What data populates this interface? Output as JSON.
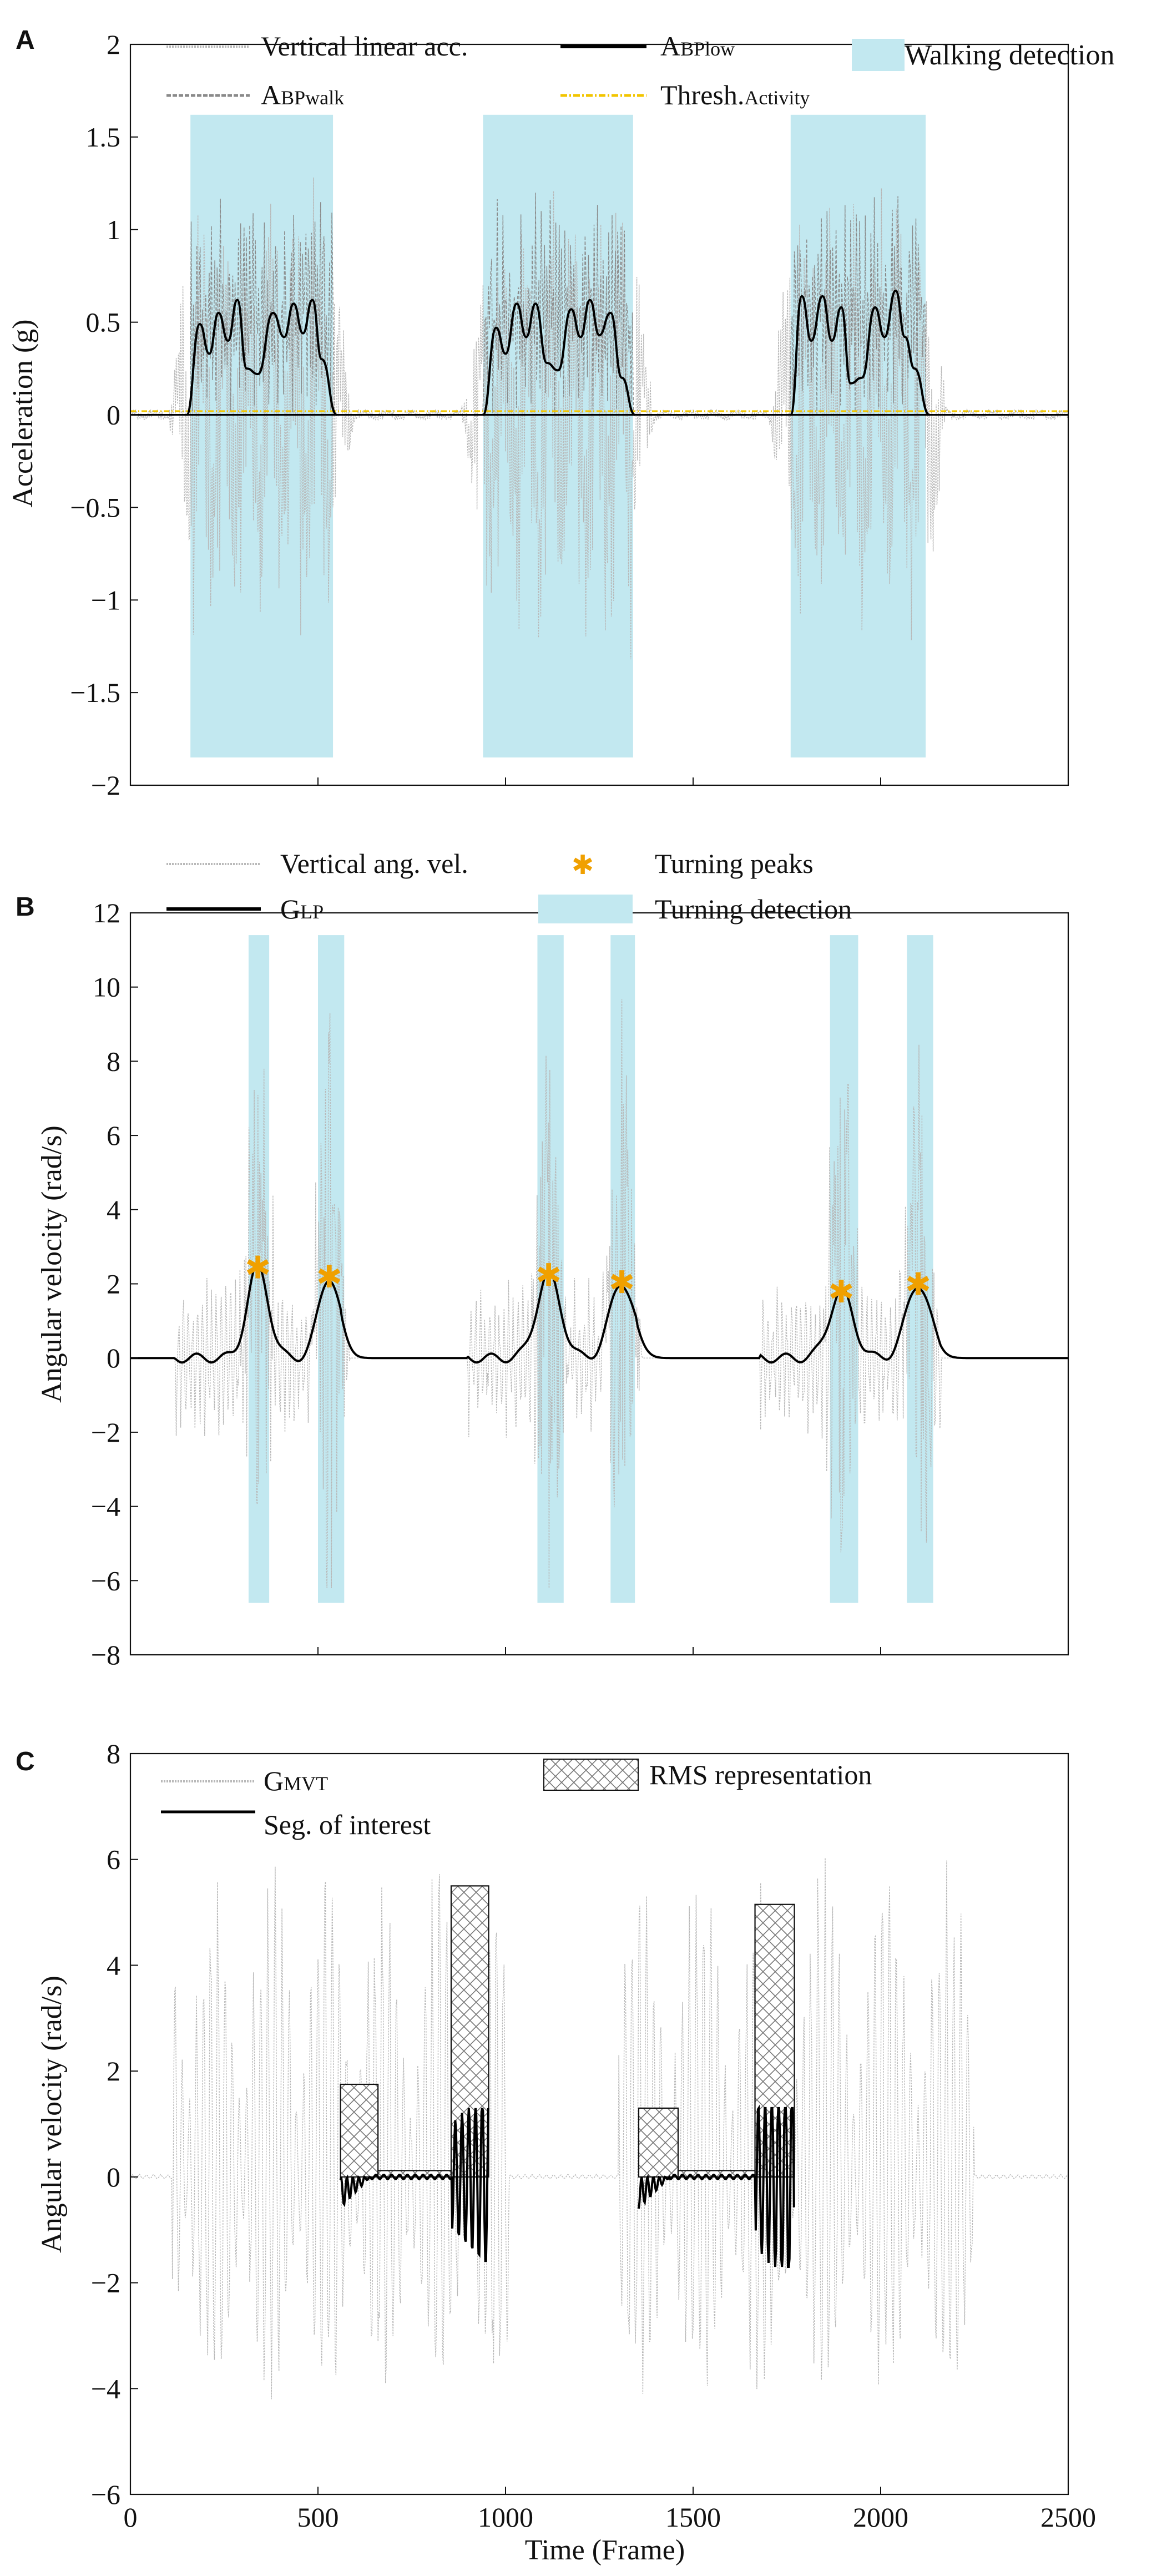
{
  "chart_data": [
    {
      "panel": "A",
      "type": "line",
      "ylabel": "Acceleration (g)",
      "xlabel": "",
      "xlim": [
        0,
        2500
      ],
      "ylim": [
        -2,
        2
      ],
      "yticks": [
        -2,
        -1.5,
        -1,
        -0.5,
        0,
        0.5,
        1,
        1.5,
        2
      ],
      "ytick_labels": [
        "−2",
        "−1.5",
        "−1",
        "−0.5",
        "0",
        "0.5",
        "1",
        "1.5",
        "2"
      ],
      "xticks": [
        0,
        500,
        1000,
        1500,
        2000,
        2500
      ],
      "legend": [
        {
          "label": "Vertical linear acc.",
          "style": "dotted",
          "color": "#b8b8b8"
        },
        {
          "label_main": "A",
          "label_sub": "BPlow",
          "style": "solid",
          "color": "#000000"
        },
        {
          "label": "Walking detection",
          "style": "patch",
          "color": "#c2e8f0"
        },
        {
          "label_main": "A",
          "label_sub": "BPwalk",
          "style": "dashed",
          "color": "#8a8a8a"
        },
        {
          "label_main": "Thresh.",
          "label_sub": "Activity",
          "style": "dashdot",
          "color": "#f2c500"
        }
      ],
      "walking_detection": [
        [
          160,
          540
        ],
        [
          940,
          1340
        ],
        [
          1760,
          2120
        ]
      ],
      "walking_detection_y": [
        -1.85,
        1.62
      ],
      "threshold": 0.02,
      "a_bplow_peaks": [
        [
          [
            150,
            0.0
          ],
          [
            185,
            0.49
          ],
          [
            210,
            0.33
          ],
          [
            235,
            0.55
          ],
          [
            260,
            0.4
          ],
          [
            285,
            0.62
          ],
          [
            310,
            0.25
          ],
          [
            340,
            0.22
          ],
          [
            380,
            0.55
          ],
          [
            410,
            0.42
          ],
          [
            435,
            0.6
          ],
          [
            460,
            0.44
          ],
          [
            485,
            0.62
          ],
          [
            510,
            0.3
          ],
          [
            550,
            0.0
          ]
        ],
        [
          [
            940,
            0.0
          ],
          [
            975,
            0.47
          ],
          [
            1000,
            0.33
          ],
          [
            1030,
            0.6
          ],
          [
            1055,
            0.42
          ],
          [
            1080,
            0.6
          ],
          [
            1110,
            0.28
          ],
          [
            1140,
            0.24
          ],
          [
            1175,
            0.57
          ],
          [
            1200,
            0.42
          ],
          [
            1225,
            0.62
          ],
          [
            1250,
            0.43
          ],
          [
            1280,
            0.55
          ],
          [
            1310,
            0.2
          ],
          [
            1345,
            0.0
          ]
        ],
        [
          [
            1760,
            0.0
          ],
          [
            1790,
            0.64
          ],
          [
            1815,
            0.4
          ],
          [
            1845,
            0.64
          ],
          [
            1870,
            0.4
          ],
          [
            1895,
            0.58
          ],
          [
            1920,
            0.17
          ],
          [
            1950,
            0.2
          ],
          [
            1985,
            0.58
          ],
          [
            2010,
            0.42
          ],
          [
            2040,
            0.67
          ],
          [
            2065,
            0.42
          ],
          [
            2090,
            0.25
          ],
          [
            2130,
            0.0
          ]
        ]
      ],
      "raw_envelope": {
        "pos_max": 1.4,
        "neg_min": -1.45
      }
    },
    {
      "panel": "B",
      "type": "line",
      "ylabel": "Angular velocity (rad/s)",
      "xlabel": "",
      "xlim": [
        0,
        2500
      ],
      "ylim": [
        -8,
        12
      ],
      "yticks": [
        -8,
        -6,
        -4,
        -2,
        0,
        2,
        4,
        6,
        8,
        10,
        12
      ],
      "ytick_labels": [
        "−8",
        "−6",
        "−4",
        "−2",
        "0",
        "2",
        "4",
        "6",
        "8",
        "10",
        "12"
      ],
      "xticks": [
        0,
        500,
        1000,
        1500,
        2000,
        2500
      ],
      "legend": [
        {
          "label": "Vertical ang. vel.",
          "style": "dotted",
          "color": "#b8b8b8"
        },
        {
          "label": "Turning peaks",
          "style": "marker",
          "color": "#f0a000"
        },
        {
          "label_main": "G",
          "label_sub": "LP",
          "style": "solid",
          "color": "#000000"
        },
        {
          "label": "Turning detection",
          "style": "patch",
          "color": "#c2e8f0"
        }
      ],
      "turning_detection": [
        [
          315,
          370
        ],
        [
          500,
          570
        ],
        [
          1085,
          1155
        ],
        [
          1280,
          1345
        ],
        [
          1865,
          1940
        ],
        [
          2070,
          2140
        ]
      ],
      "turning_detection_y": [
        -6.6,
        11.4
      ],
      "turning_peaks": [
        [
          340,
          2.45
        ],
        [
          530,
          2.2
        ],
        [
          1115,
          2.25
        ],
        [
          1310,
          2.05
        ],
        [
          1895,
          1.8
        ],
        [
          2100,
          2.0
        ]
      ],
      "peak_half_widths": [
        40,
        40,
        45,
        45,
        45,
        45
      ]
    },
    {
      "panel": "C",
      "type": "line",
      "ylabel": "Angular velocity (rad/s)",
      "xlabel": "Time (Frame)",
      "xlim": [
        0,
        2500
      ],
      "ylim": [
        -6,
        8
      ],
      "yticks": [
        -6,
        -4,
        -2,
        0,
        2,
        4,
        6,
        8
      ],
      "ytick_labels": [
        "−6",
        "−4",
        "−2",
        "0",
        "2",
        "4",
        "6",
        "8"
      ],
      "xticks": [
        0,
        500,
        1000,
        1500,
        2000,
        2500
      ],
      "xtick_labels": [
        "0",
        "500",
        "1000",
        "1500",
        "2000",
        "2500"
      ],
      "legend": [
        {
          "label_main": "G",
          "label_sub": "MVT",
          "style": "dotted",
          "color": "#b8b8b8"
        },
        {
          "label": "RMS representation",
          "style": "hatch",
          "color": "#666666"
        },
        {
          "label": "Seg. of interest",
          "style": "solid",
          "color": "#000000"
        }
      ],
      "rms_bars": [
        {
          "x0": 560,
          "x1": 660,
          "height": 1.75
        },
        {
          "x0": 660,
          "x1": 855,
          "height": 0.12
        },
        {
          "x0": 855,
          "x1": 955,
          "height": 5.5
        },
        {
          "x0": 1355,
          "x1": 1460,
          "height": 1.3
        },
        {
          "x0": 1460,
          "x1": 1665,
          "height": 0.12
        },
        {
          "x0": 1665,
          "x1": 1770,
          "height": 5.15
        }
      ],
      "segments_of_interest": [
        [
          560,
          955
        ],
        [
          1355,
          1770
        ]
      ],
      "gmvt_envelope": {
        "pos_max": 6.3,
        "neg_min": -4.2
      }
    }
  ]
}
